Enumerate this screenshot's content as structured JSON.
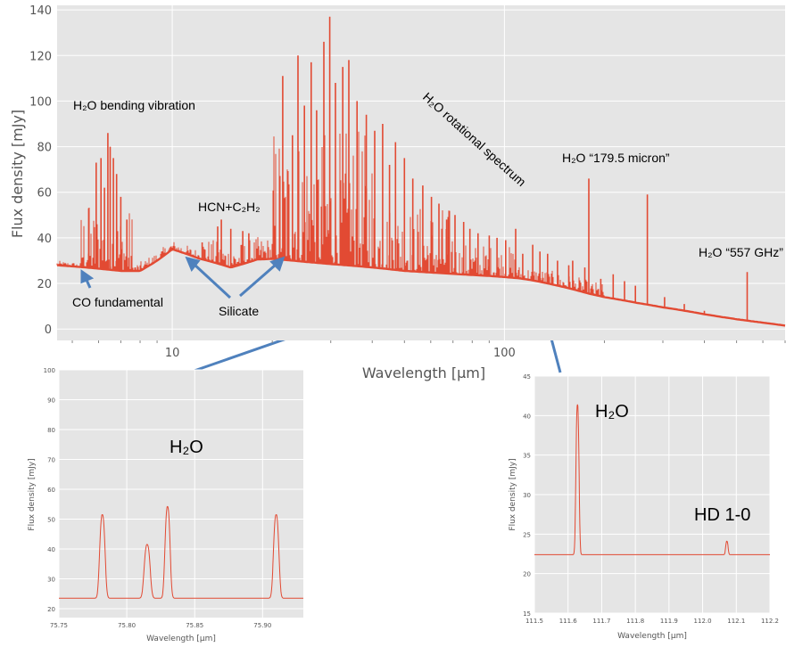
{
  "chart_data": [
    {
      "type": "line",
      "panel": "main",
      "xlabel": "Wavelength [μm]",
      "ylabel": "Flux density [mJy]",
      "xscale": "log",
      "xlim": [
        4.5,
        700
      ],
      "ylim": [
        -5,
        142
      ],
      "grid": true,
      "x_ticks": [
        10,
        100
      ],
      "y_ticks": [
        0,
        20,
        40,
        60,
        80,
        100,
        120,
        140
      ],
      "continuum": {
        "x": [
          4.5,
          6,
          7,
          8,
          9,
          10,
          12,
          15,
          18,
          20,
          25,
          30,
          40,
          50,
          60,
          70,
          80,
          90,
          100,
          110,
          120,
          140,
          160,
          180,
          200,
          250,
          300,
          350,
          400,
          450,
          500,
          550,
          600,
          700
        ],
        "y": [
          28,
          26.5,
          25.5,
          25.5,
          30,
          35,
          31,
          27,
          30.5,
          30.8,
          29.5,
          28.5,
          27,
          25.5,
          24.8,
          24.2,
          23.7,
          23.3,
          22.8,
          22.3,
          21.5,
          19.5,
          17.5,
          15.5,
          14,
          11.5,
          9.5,
          8,
          6.5,
          5.3,
          4.3,
          3.5,
          2.8,
          1.5
        ]
      },
      "lines": [
        {
          "x": 5.6,
          "y": 53
        },
        {
          "x": 5.9,
          "y": 73
        },
        {
          "x": 6.1,
          "y": 75
        },
        {
          "x": 6.25,
          "y": 62
        },
        {
          "x": 6.4,
          "y": 86
        },
        {
          "x": 6.5,
          "y": 80
        },
        {
          "x": 6.65,
          "y": 75
        },
        {
          "x": 6.8,
          "y": 68
        },
        {
          "x": 7.0,
          "y": 58
        },
        {
          "x": 7.3,
          "y": 48
        },
        {
          "x": 12.3,
          "y": 38
        },
        {
          "x": 13.7,
          "y": 45
        },
        {
          "x": 14.05,
          "y": 48
        },
        {
          "x": 15.0,
          "y": 44
        },
        {
          "x": 16.3,
          "y": 43
        },
        {
          "x": 17.0,
          "y": 42
        },
        {
          "x": 21.5,
          "y": 111
        },
        {
          "x": 23.0,
          "y": 85
        },
        {
          "x": 23.9,
          "y": 120
        },
        {
          "x": 25.0,
          "y": 98
        },
        {
          "x": 26.2,
          "y": 117
        },
        {
          "x": 27.2,
          "y": 96
        },
        {
          "x": 28.6,
          "y": 126
        },
        {
          "x": 29.8,
          "y": 137
        },
        {
          "x": 31.0,
          "y": 108
        },
        {
          "x": 32.6,
          "y": 115
        },
        {
          "x": 34.0,
          "y": 118
        },
        {
          "x": 36.0,
          "y": 100
        },
        {
          "x": 38.4,
          "y": 94
        },
        {
          "x": 40.7,
          "y": 87
        },
        {
          "x": 43.0,
          "y": 90
        },
        {
          "x": 45.1,
          "y": 72
        },
        {
          "x": 47.0,
          "y": 82
        },
        {
          "x": 50.0,
          "y": 75
        },
        {
          "x": 53.0,
          "y": 66
        },
        {
          "x": 56.8,
          "y": 63
        },
        {
          "x": 60.3,
          "y": 58
        },
        {
          "x": 63.5,
          "y": 55
        },
        {
          "x": 67.0,
          "y": 48
        },
        {
          "x": 71.0,
          "y": 50
        },
        {
          "x": 75.4,
          "y": 47
        },
        {
          "x": 78.7,
          "y": 44
        },
        {
          "x": 83.3,
          "y": 42
        },
        {
          "x": 90.0,
          "y": 41
        },
        {
          "x": 95.0,
          "y": 40
        },
        {
          "x": 100.9,
          "y": 39
        },
        {
          "x": 108.1,
          "y": 44
        },
        {
          "x": 113.5,
          "y": 33
        },
        {
          "x": 121.7,
          "y": 37
        },
        {
          "x": 127.9,
          "y": 34
        },
        {
          "x": 134.9,
          "y": 33
        },
        {
          "x": 144.5,
          "y": 30
        },
        {
          "x": 156.2,
          "y": 28
        },
        {
          "x": 160.5,
          "y": 30
        },
        {
          "x": 174.6,
          "y": 27
        },
        {
          "x": 179.5,
          "y": 66
        },
        {
          "x": 195.0,
          "y": 22
        },
        {
          "x": 212.5,
          "y": 24
        },
        {
          "x": 230.0,
          "y": 21
        },
        {
          "x": 248.0,
          "y": 19
        },
        {
          "x": 269.3,
          "y": 59
        },
        {
          "x": 303.5,
          "y": 14
        },
        {
          "x": 348.0,
          "y": 11
        },
        {
          "x": 400.0,
          "y": 8
        },
        {
          "x": 538.3,
          "y": 25
        }
      ],
      "annotations": [
        {
          "text": "H₂O bending vibration",
          "x": 4.8,
          "y": 98
        },
        {
          "text": "HCN+C₂H₂",
          "x": 11.8,
          "y": 51
        },
        {
          "text": "H₂O rotational spectrum",
          "x": 65,
          "y": 100
        },
        {
          "text": "H₂O “179.5 micron”",
          "x": 130,
          "y": 74
        },
        {
          "text": "H₂O “557 GHz”",
          "x": 455,
          "y": 33
        },
        {
          "text": "CO fundamental",
          "x": 5.0,
          "y": 9
        },
        {
          "text": "Silicate",
          "x": 11.5,
          "y": 2
        }
      ]
    },
    {
      "type": "line",
      "panel": "inset-left",
      "xlabel": "Wavelength [μm]",
      "ylabel": "Flux density [mJy]",
      "xlim": [
        75.75,
        75.93
      ],
      "ylim": [
        17,
        100
      ],
      "x_ticks": [
        75.75,
        75.8,
        75.85,
        75.9
      ],
      "x_tick_labels": [
        "75.75",
        "75.80",
        "75.85",
        "75.90"
      ],
      "y_ticks": [
        20,
        30,
        40,
        50,
        60,
        70,
        80,
        90,
        100
      ],
      "baseline": 23.5,
      "peaks": [
        {
          "x": 75.782,
          "y": 51.5,
          "sigma": 0.0019
        },
        {
          "x": 75.815,
          "y": 41.5,
          "sigma": 0.0021
        },
        {
          "x": 75.83,
          "y": 54.2,
          "sigma": 0.0018
        },
        {
          "x": 75.91,
          "y": 51.5,
          "sigma": 0.0019
        }
      ],
      "label": "H₂O"
    },
    {
      "type": "line",
      "panel": "inset-right",
      "xlabel": "Wavelength [μm]",
      "ylabel": "Flux density [mJy]",
      "xlim": [
        111.5,
        112.2
      ],
      "ylim": [
        15,
        45
      ],
      "x_ticks": [
        111.5,
        111.6,
        111.7,
        111.8,
        111.9,
        112.0,
        112.1,
        112.2
      ],
      "x_tick_labels": [
        "111.5",
        "111.6",
        "111.7",
        "111.8",
        "111.9",
        "112.0",
        "112.1",
        "112.2"
      ],
      "y_ticks": [
        15,
        20,
        25,
        30,
        35,
        40,
        45
      ],
      "baseline": 22.4,
      "peaks": [
        {
          "x": 111.628,
          "y": 41.4,
          "sigma": 0.0045
        },
        {
          "x": 112.072,
          "y": 24.1,
          "sigma": 0.0035
        }
      ],
      "labels": [
        {
          "text": "H₂O",
          "x": 111.68,
          "y": 40.5
        },
        {
          "text": "HD 1-0",
          "x": 112.0,
          "y": 27.8
        }
      ]
    }
  ],
  "colors": {
    "background": "#e5e5e5",
    "grid": "#ffffff",
    "spectrum": "#e24a33",
    "arrow": "#4f81bd",
    "tick_text": "#555555"
  }
}
